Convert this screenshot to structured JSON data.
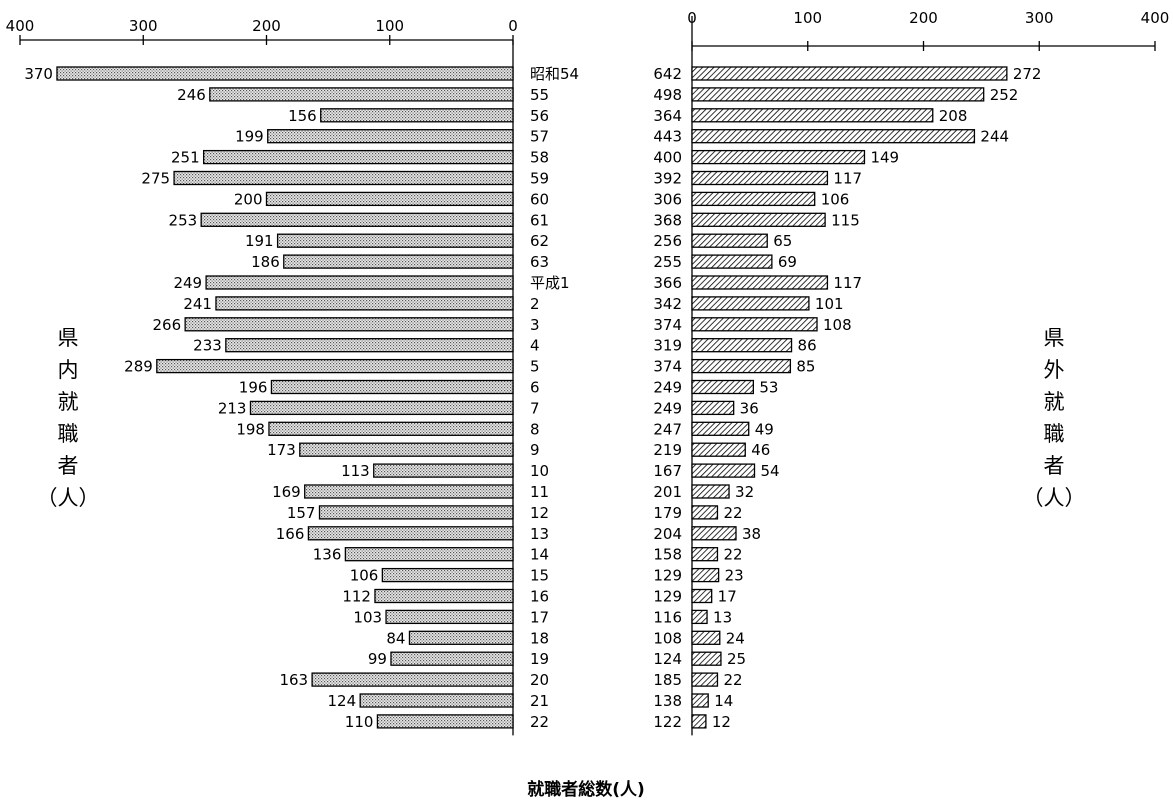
{
  "chart_data": {
    "type": "bar",
    "categories": [
      "昭和54",
      "55",
      "56",
      "57",
      "58",
      "59",
      "60",
      "61",
      "62",
      "63",
      "平成1",
      "2",
      "3",
      "4",
      "5",
      "6",
      "7",
      "8",
      "9",
      "10",
      "11",
      "12",
      "13",
      "14",
      "15",
      "16",
      "17",
      "18",
      "19",
      "20",
      "21",
      "22"
    ],
    "series": [
      {
        "name": "県内就職者（人）",
        "values": [
          370,
          246,
          156,
          199,
          251,
          275,
          200,
          253,
          191,
          186,
          249,
          241,
          266,
          233,
          289,
          196,
          213,
          198,
          173,
          113,
          169,
          157,
          166,
          136,
          106,
          112,
          103,
          84,
          99,
          163,
          124,
          110
        ]
      },
      {
        "name": "県外就職者（人）",
        "values": [
          272,
          252,
          208,
          244,
          149,
          117,
          106,
          115,
          65,
          69,
          117,
          101,
          108,
          86,
          85,
          53,
          36,
          49,
          46,
          54,
          32,
          22,
          38,
          22,
          23,
          17,
          13,
          24,
          25,
          22,
          14,
          12
        ]
      }
    ],
    "totals": [
      642,
      498,
      364,
      443,
      400,
      392,
      306,
      368,
      256,
      255,
      366,
      342,
      374,
      319,
      374,
      249,
      249,
      247,
      219,
      167,
      201,
      179,
      204,
      158,
      129,
      129,
      116,
      108,
      124,
      185,
      138,
      122
    ],
    "left_axis": {
      "ticks": [
        400,
        300,
        200,
        100,
        0
      ],
      "range": [
        0,
        400
      ],
      "direction": "reversed"
    },
    "right_axis": {
      "ticks": [
        0,
        100,
        200,
        300,
        400
      ],
      "range": [
        0,
        400
      ]
    },
    "footer_label": "就職者総数(人)",
    "grid": false,
    "colors": {
      "left_bars": "#cfcfcf",
      "right_bars": "#ffffff",
      "stroke": "#000000"
    }
  },
  "labels": {
    "left_vertical": [
      "県",
      "内",
      "就",
      "職",
      "者"
    ],
    "left_unit": "（人）",
    "right_vertical": [
      "県",
      "外",
      "就",
      "職",
      "者"
    ],
    "right_unit": "（人）"
  }
}
